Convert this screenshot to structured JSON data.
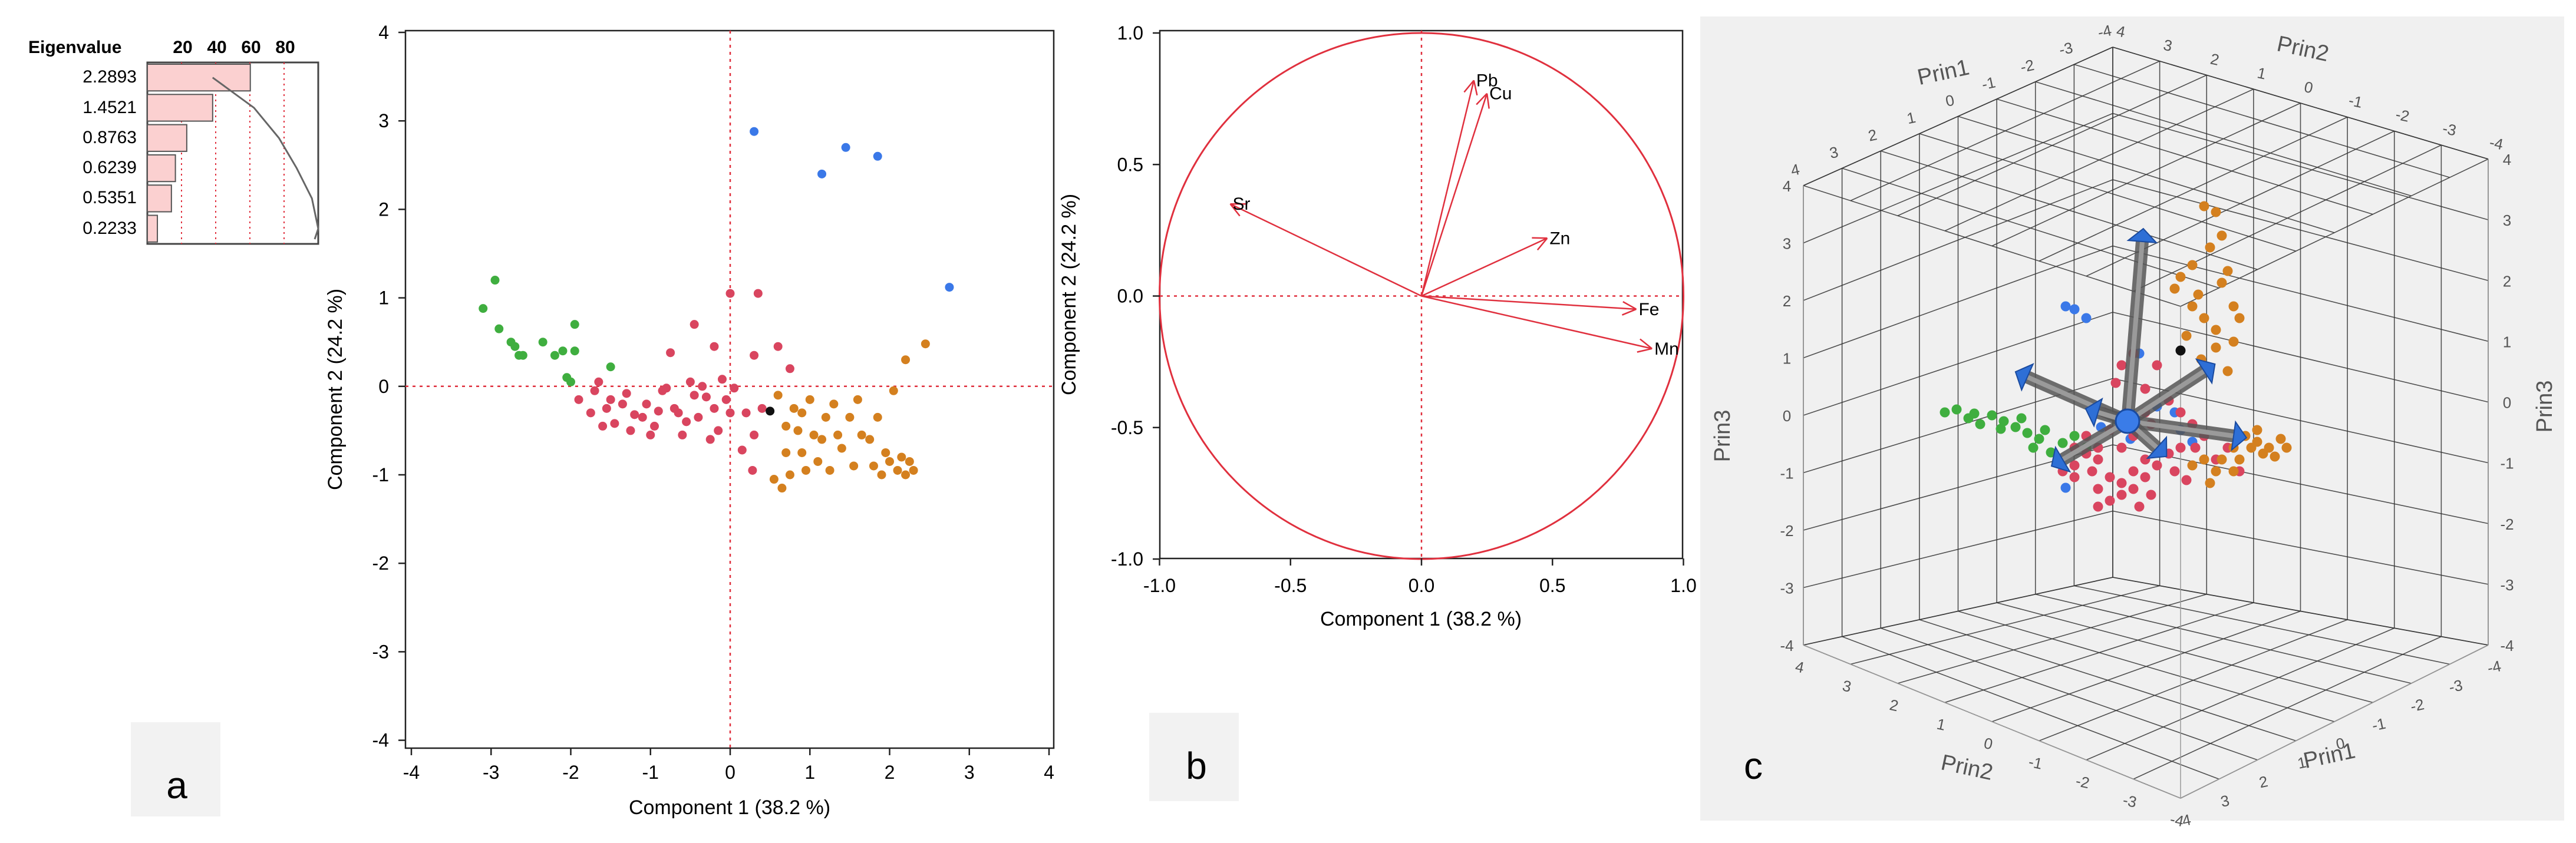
{
  "panels": {
    "a": "a",
    "b": "b",
    "c": "c"
  },
  "chart_data": [
    {
      "type": "bar",
      "id": "eigenvalue-bars",
      "title": "Eigenvalue",
      "values": [
        2.2893,
        1.4521,
        0.8763,
        0.6239,
        0.5351,
        0.2233
      ],
      "labels": [
        "2.2893",
        "1.4521",
        "0.8763",
        "0.6239",
        "0.5351",
        "0.2233"
      ],
      "percent_ticks": [
        "20",
        "40",
        "60",
        "80"
      ],
      "cumulative_percent": [
        38.2,
        62.4,
        77.0,
        87.4,
        96.3,
        100.0
      ]
    },
    {
      "type": "scatter",
      "id": "score-plot",
      "xlabel": "Component 1  (38.2 %)",
      "ylabel": "Component 2  (24.2 %)",
      "xlim": [
        -4,
        4
      ],
      "ylim": [
        -4,
        4
      ],
      "xticks": [
        "-4",
        "-3",
        "-2",
        "-1",
        "0",
        "1",
        "2",
        "3",
        "4"
      ],
      "yticks": [
        "4",
        "3",
        "2",
        "1",
        "0",
        "-1",
        "-2",
        "-3",
        "-4"
      ],
      "colors": {
        "blue": "#3a78e8",
        "green": "#3fae3f",
        "red": "#d9455f",
        "orange": "#d4801f",
        "black": "#111111"
      },
      "series": [
        {
          "name": "blue",
          "points": [
            [
              0.3,
              2.88
            ],
            [
              1.15,
              2.4
            ],
            [
              1.45,
              2.7
            ],
            [
              1.85,
              2.6
            ],
            [
              2.75,
              1.12
            ]
          ]
        },
        {
          "name": "green",
          "points": [
            [
              -3.1,
              0.88
            ],
            [
              -2.95,
              1.2
            ],
            [
              -2.9,
              0.65
            ],
            [
              -2.75,
              0.5
            ],
            [
              -2.7,
              0.45
            ],
            [
              -2.65,
              0.35
            ],
            [
              -2.6,
              0.35
            ],
            [
              -2.35,
              0.5
            ],
            [
              -2.2,
              0.35
            ],
            [
              -2.1,
              0.4
            ],
            [
              -2.05,
              0.1
            ],
            [
              -1.95,
              0.4
            ],
            [
              -1.95,
              0.7
            ],
            [
              -1.5,
              0.22
            ],
            [
              -2.0,
              0.05
            ]
          ]
        },
        {
          "name": "red",
          "points": [
            [
              0.0,
              1.05
            ],
            [
              0.35,
              1.05
            ],
            [
              -0.45,
              0.7
            ],
            [
              -0.2,
              0.45
            ],
            [
              0.3,
              0.35
            ],
            [
              -0.75,
              0.38
            ],
            [
              -1.65,
              0.05
            ],
            [
              -1.5,
              -0.15
            ],
            [
              -1.3,
              -0.08
            ],
            [
              -1.2,
              -0.32
            ],
            [
              -1.05,
              -0.2
            ],
            [
              -0.95,
              -0.45
            ],
            [
              -0.8,
              -0.02
            ],
            [
              -0.65,
              -0.3
            ],
            [
              -0.5,
              0.05
            ],
            [
              -0.4,
              -0.35
            ],
            [
              -0.3,
              -0.12
            ],
            [
              -0.2,
              -0.25
            ],
            [
              -0.05,
              -0.15
            ],
            [
              0.05,
              -0.02
            ],
            [
              0.2,
              -0.3
            ],
            [
              -1.45,
              -0.42
            ],
            [
              -1.55,
              -0.25
            ],
            [
              -1.75,
              -0.3
            ],
            [
              -1.7,
              -0.05
            ],
            [
              -1.0,
              -0.55
            ],
            [
              -0.6,
              -0.55
            ],
            [
              -0.15,
              -0.5
            ],
            [
              0.3,
              -0.55
            ],
            [
              -1.25,
              -0.5
            ],
            [
              -0.85,
              -0.05
            ],
            [
              -0.55,
              -0.4
            ],
            [
              -1.35,
              -0.2
            ],
            [
              -0.35,
              0.0
            ],
            [
              -0.1,
              0.08
            ],
            [
              0.6,
              0.45
            ],
            [
              0.75,
              0.2
            ],
            [
              0.15,
              -0.72
            ],
            [
              0.28,
              -0.95
            ],
            [
              -1.1,
              -0.35
            ],
            [
              -0.7,
              -0.25
            ],
            [
              -0.9,
              -0.28
            ],
            [
              -1.6,
              -0.45
            ],
            [
              -1.9,
              -0.15
            ],
            [
              0.4,
              -0.25
            ],
            [
              -0.25,
              -0.6
            ],
            [
              0.0,
              -0.3
            ],
            [
              -0.45,
              -0.1
            ]
          ]
        },
        {
          "name": "orange",
          "points": [
            [
              0.6,
              -0.1
            ],
            [
              0.8,
              -0.25
            ],
            [
              0.7,
              -0.45
            ],
            [
              1.0,
              -0.15
            ],
            [
              1.2,
              -0.35
            ],
            [
              1.35,
              -0.55
            ],
            [
              1.6,
              -0.15
            ],
            [
              1.85,
              -0.35
            ],
            [
              2.05,
              -0.05
            ],
            [
              2.2,
              0.3
            ],
            [
              2.45,
              0.48
            ],
            [
              0.55,
              -1.05
            ],
            [
              0.65,
              -1.15
            ],
            [
              0.75,
              -1.0
            ],
            [
              0.9,
              -0.75
            ],
            [
              1.1,
              -0.85
            ],
            [
              1.25,
              -0.95
            ],
            [
              1.4,
              -0.7
            ],
            [
              1.55,
              -0.9
            ],
            [
              1.75,
              -0.6
            ],
            [
              1.8,
              -0.9
            ],
            [
              1.9,
              -1.0
            ],
            [
              2.0,
              -0.85
            ],
            [
              2.1,
              -0.95
            ],
            [
              2.2,
              -1.0
            ],
            [
              2.3,
              -0.95
            ],
            [
              0.85,
              -0.5
            ],
            [
              1.05,
              -0.55
            ],
            [
              1.5,
              -0.35
            ],
            [
              0.95,
              -0.95
            ],
            [
              0.7,
              -0.75
            ],
            [
              1.3,
              -0.2
            ],
            [
              1.65,
              -0.55
            ],
            [
              2.15,
              -0.8
            ],
            [
              1.95,
              -0.75
            ],
            [
              0.9,
              -0.3
            ],
            [
              1.15,
              -0.6
            ],
            [
              2.25,
              -0.85
            ]
          ]
        },
        {
          "name": "black",
          "points": [
            [
              0.5,
              -0.28
            ]
          ]
        }
      ]
    },
    {
      "type": "line",
      "id": "loading-plot",
      "xlabel": "Component 1  (38.2 %)",
      "ylabel": "Component 2  (24.2 %)",
      "xlim": [
        -1.0,
        1.0
      ],
      "ylim": [
        -1.0,
        1.0
      ],
      "xticks": [
        "-1.0",
        "-0.5",
        "0.0",
        "0.5",
        "1.0"
      ],
      "yticks": [
        "1.0",
        "0.5",
        "0.0",
        "-0.5",
        "-1.0"
      ],
      "color": "#e0303e",
      "vectors": [
        {
          "name": "Pb",
          "x": 0.2,
          "y": 0.82
        },
        {
          "name": "Cu",
          "x": 0.25,
          "y": 0.77
        },
        {
          "name": "Sr",
          "x": -0.73,
          "y": 0.35
        },
        {
          "name": "Zn",
          "x": 0.48,
          "y": 0.22
        },
        {
          "name": "Fe",
          "x": 0.82,
          "y": -0.05
        },
        {
          "name": "Mn",
          "x": 0.88,
          "y": -0.2
        }
      ]
    },
    {
      "type": "scatter",
      "id": "biplot-3d",
      "axis_labels": {
        "prin1_top": "Prin1",
        "prin2_top": "Prin2",
        "prin3_left": "Prin3",
        "prin3_right": "Prin3",
        "prin2_bottom": "Prin2",
        "prin1_bottom": "Prin1"
      },
      "ticks": [
        "4",
        "3",
        "2",
        "1",
        "0",
        "-1",
        "-2",
        "-3",
        "-4"
      ]
    }
  ]
}
